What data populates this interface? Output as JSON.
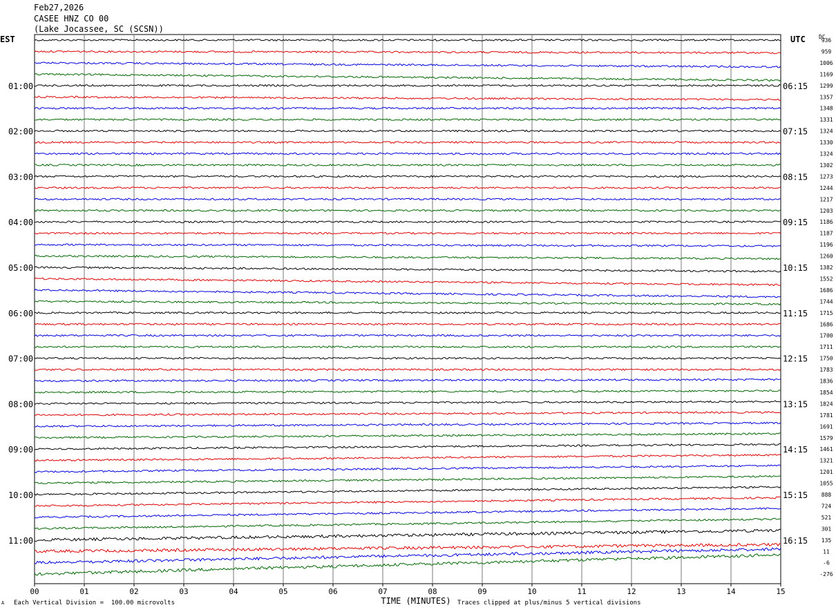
{
  "header": {
    "date": "Feb27,2026",
    "station": "CASEE HNZ CO 00",
    "location": "(Lake Jocassee, SC (SCSN))"
  },
  "left_zone": "EST",
  "right_zone": "UTC",
  "dc_label": "DC",
  "footer": {
    "scale_note": "Each Vertical Division =  100.00 microvolts",
    "clip_note": "Traces clipped at plus/minus 5 vertical divisions",
    "corner_mark": "A"
  },
  "chart_data": {
    "type": "line",
    "xlabel": "TIME (MINUTES)",
    "x_ticks": [
      "00",
      "01",
      "02",
      "03",
      "04",
      "05",
      "06",
      "07",
      "08",
      "09",
      "10",
      "11",
      "12",
      "13",
      "14",
      "15"
    ],
    "xlim": [
      0,
      15
    ],
    "rows_per_hour": 4,
    "row_minutes": 15,
    "trace_colors": [
      "#000000",
      "#dd0000",
      "#0000dd",
      "#006600"
    ],
    "left_hour_labels": [
      "01:00",
      "02:00",
      "03:00",
      "04:00",
      "05:00",
      "06:00",
      "07:00",
      "08:00",
      "09:00",
      "10:00",
      "11:00"
    ],
    "right_hour_labels": [
      "06:15",
      "07:15",
      "08:15",
      "09:15",
      "10:15",
      "11:15",
      "12:15",
      "13:15",
      "14:15",
      "15:15",
      "16:15"
    ],
    "dc_offsets": [
      "936",
      "959",
      "1006",
      "1169",
      "1299",
      "1357",
      "1348",
      "1331",
      "1324",
      "1330",
      "1324",
      "1302",
      "1273",
      "1244",
      "1217",
      "1203",
      "1186",
      "1187",
      "1196",
      "1260",
      "1382",
      "1552",
      "1686",
      "1744",
      "1715",
      "1686",
      "1700",
      "1711",
      "1750",
      "1783",
      "1836",
      "1854",
      "1824",
      "1781",
      "1691",
      "1579",
      "1461",
      "1321",
      "1201",
      "1055",
      "888",
      "724",
      "521",
      "301",
      "135",
      "11",
      "-6",
      "-276"
    ],
    "grid": true
  }
}
